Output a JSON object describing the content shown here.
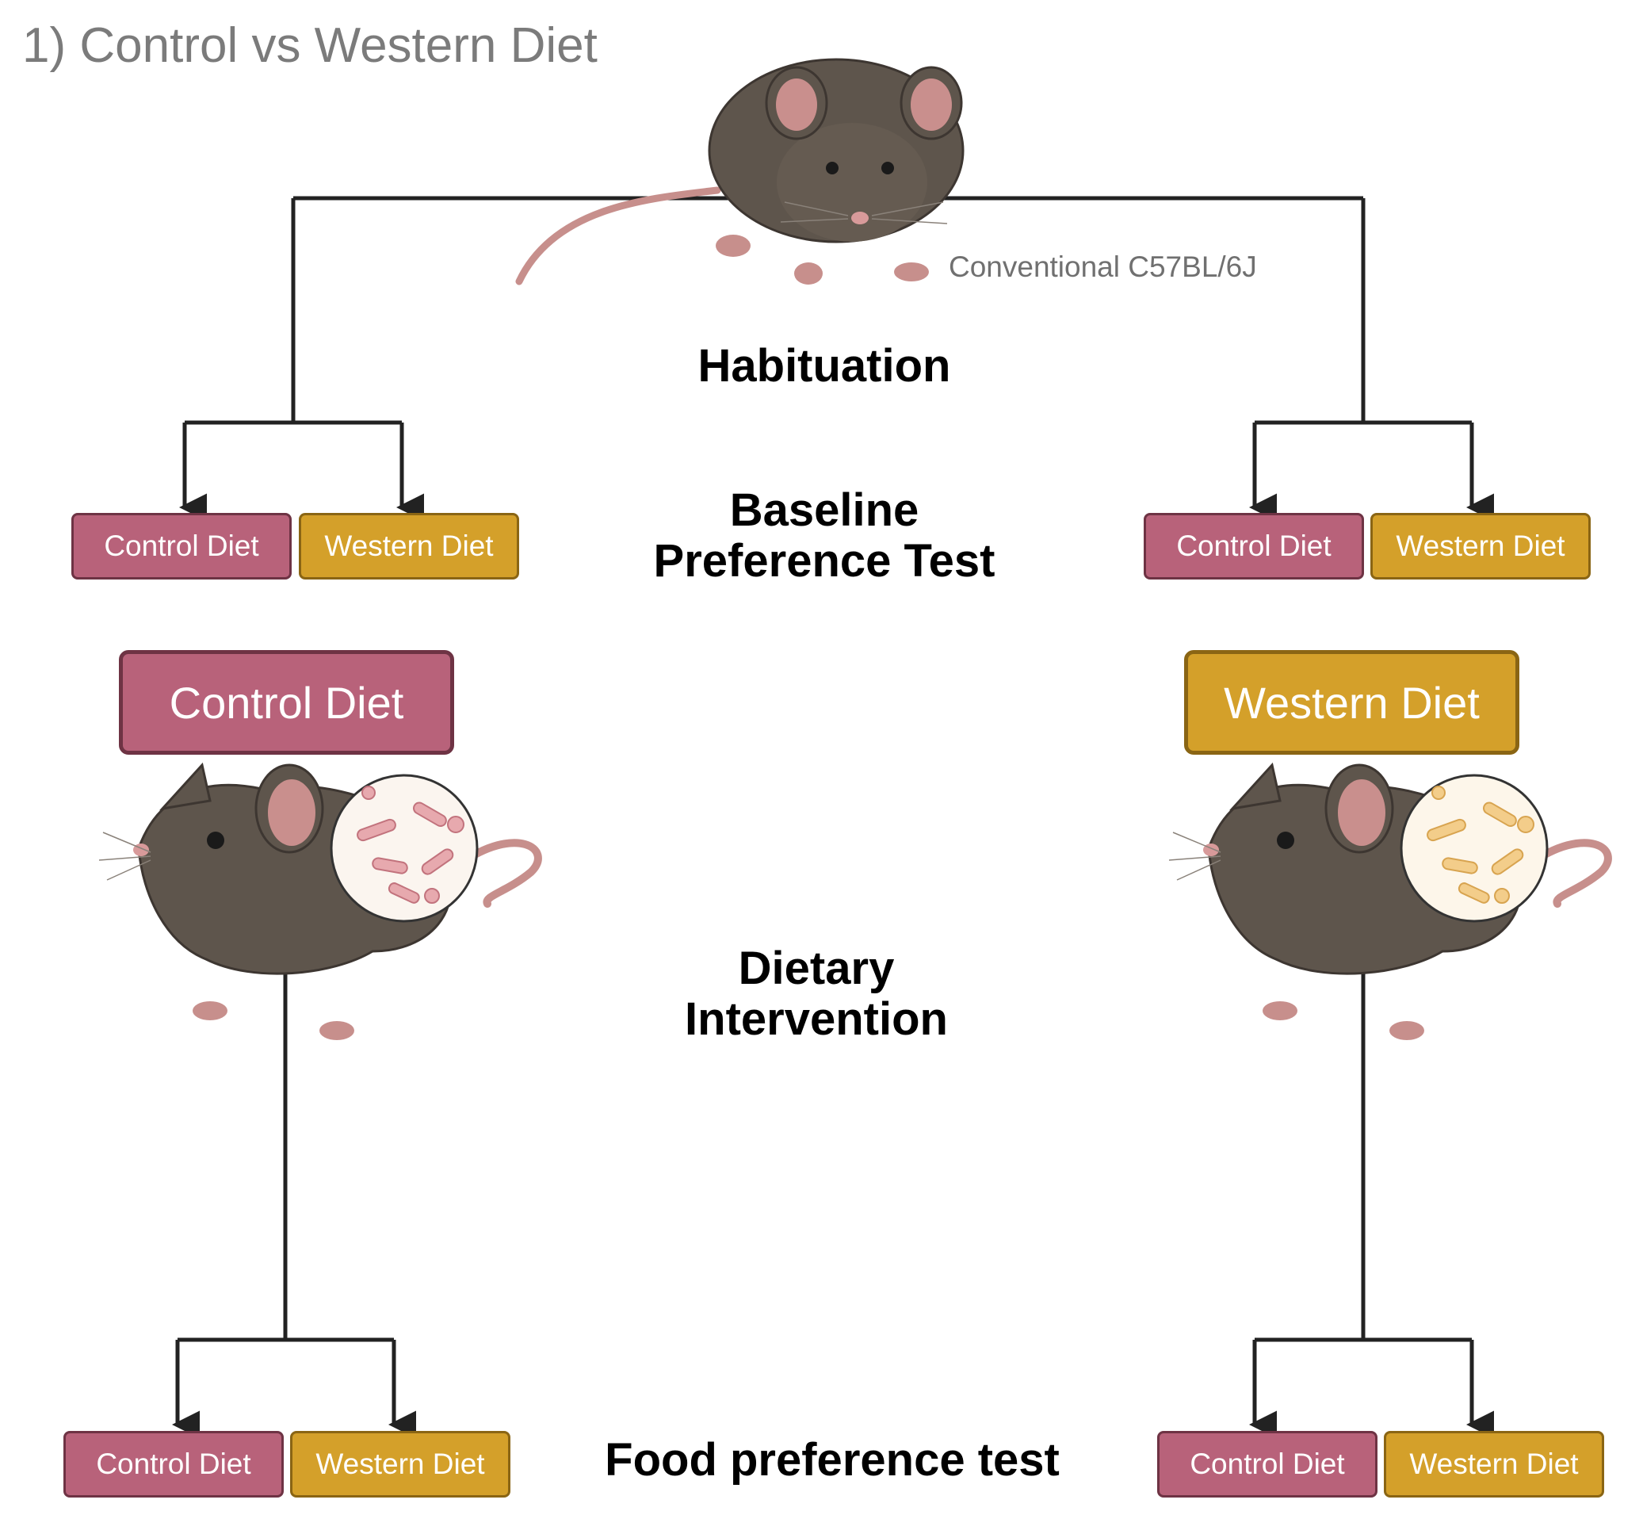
{
  "title": "1) Control vs Western Diet",
  "strain_label": "Conventional C57BL/6J",
  "stages": {
    "habituation": "Habituation",
    "baseline_line1": "Baseline",
    "baseline_line2": "Preference Test",
    "intervention_line1": "Dietary",
    "intervention_line2": "Intervention",
    "food_test": "Food preference test"
  },
  "diets": {
    "control": "Control Diet",
    "western": "Western Diet"
  },
  "colors": {
    "control": "#b8627a",
    "western": "#d4a02a",
    "mouse_body": "#5e554c",
    "mouse_pink": "#c78f8c",
    "lines": "#222222"
  }
}
